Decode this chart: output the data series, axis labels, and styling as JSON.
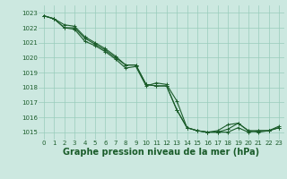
{
  "background_color": "#cce8e0",
  "grid_color": "#99ccbb",
  "line_color": "#1a5c2a",
  "marker_color": "#1a5c2a",
  "xlabel": "Graphe pression niveau de la mer (hPa)",
  "xlabel_fontsize": 7,
  "ylabel_fontsize": 5.5,
  "tick_fontsize": 5,
  "ylim": [
    1014.5,
    1023.5
  ],
  "xlim": [
    -0.5,
    23.5
  ],
  "yticks": [
    1015,
    1016,
    1017,
    1018,
    1019,
    1020,
    1021,
    1022,
    1023
  ],
  "xticks": [
    0,
    1,
    2,
    3,
    4,
    5,
    6,
    7,
    8,
    9,
    10,
    11,
    12,
    13,
    14,
    15,
    16,
    17,
    18,
    19,
    20,
    21,
    22,
    23
  ],
  "line1_x": [
    0,
    1,
    2,
    3,
    4,
    5,
    6,
    7,
    8,
    9,
    10,
    11,
    12,
    13,
    14,
    15,
    16,
    17,
    18,
    19,
    20,
    21,
    22,
    23
  ],
  "line1_y": [
    1022.8,
    1022.6,
    1022.0,
    1021.9,
    1021.1,
    1020.8,
    1020.4,
    1019.9,
    1019.3,
    1019.4,
    1018.1,
    1018.3,
    1018.2,
    1017.1,
    1015.3,
    1015.1,
    1015.0,
    1015.0,
    1015.0,
    1015.3,
    1015.0,
    1015.1,
    1015.1,
    1015.3
  ],
  "line2_x": [
    0,
    1,
    2,
    3,
    4,
    5,
    6,
    7,
    8,
    9,
    10,
    11,
    12,
    13,
    14,
    15,
    16,
    17,
    18,
    19,
    20,
    21,
    22,
    23
  ],
  "line2_y": [
    1022.8,
    1022.6,
    1022.2,
    1022.1,
    1021.4,
    1021.0,
    1020.6,
    1020.1,
    1019.5,
    1019.5,
    1018.2,
    1018.1,
    1018.1,
    1016.5,
    1015.3,
    1015.1,
    1015.0,
    1015.1,
    1015.5,
    1015.6,
    1015.1,
    1015.1,
    1015.1,
    1015.3
  ],
  "line3_x": [
    0,
    1,
    2,
    3,
    4,
    5,
    6,
    7,
    8,
    9,
    10,
    11,
    12,
    13,
    14,
    15,
    16,
    17,
    18,
    19,
    20,
    21,
    22,
    23
  ],
  "line3_y": [
    1022.8,
    1022.6,
    1022.0,
    1022.0,
    1021.3,
    1020.9,
    1020.5,
    1020.0,
    1019.5,
    1019.5,
    1018.2,
    1018.1,
    1018.1,
    1016.5,
    1015.3,
    1015.1,
    1015.0,
    1015.0,
    1015.2,
    1015.6,
    1015.1,
    1015.0,
    1015.1,
    1015.4
  ]
}
